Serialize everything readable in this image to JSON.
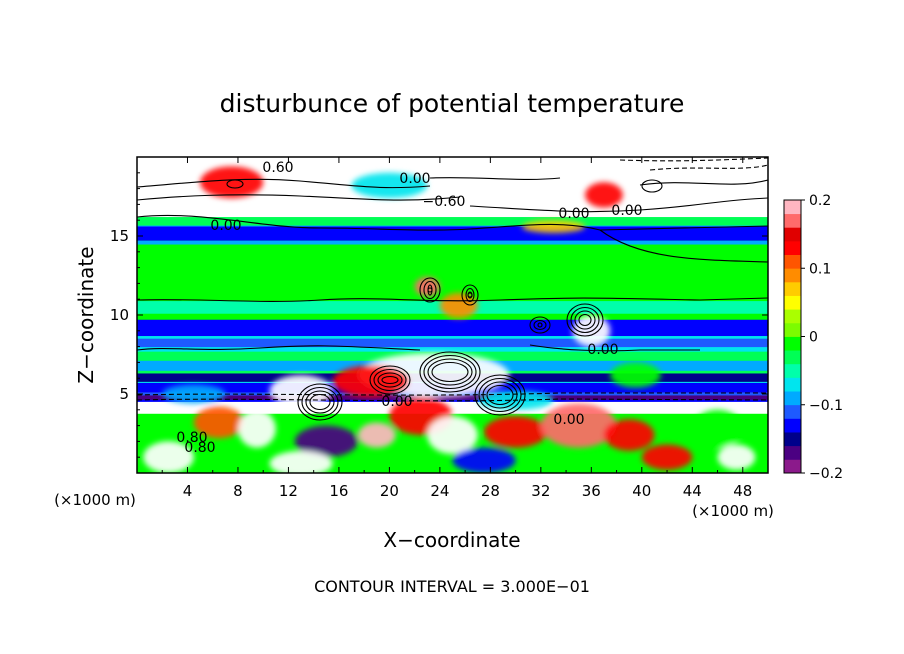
{
  "chart_data": {
    "type": "heatmap",
    "title": "disturbunce of potential temperature",
    "xlabel": "X−coordinate",
    "ylabel": "Z−coordinate",
    "x_unit_left": "(×1000 m)",
    "x_unit_right": "(×1000 m)",
    "x_ticks": [
      "4",
      "8",
      "12",
      "16",
      "20",
      "24",
      "28",
      "32",
      "36",
      "40",
      "44",
      "48"
    ],
    "y_ticks": [
      "5",
      "10",
      "15"
    ],
    "xlim": [
      0,
      50
    ],
    "ylim": [
      0,
      20
    ],
    "colorbar": {
      "range": [
        -0.2,
        0.2
      ],
      "tick_labels": [
        "0.2",
        "0.1",
        "0",
        "−0.1",
        "−0.2"
      ],
      "colors": [
        "#8b1a8b",
        "#4b0082",
        "#00008b",
        "#0000ff",
        "#1e5aff",
        "#00aaff",
        "#00e5ee",
        "#00ffaa",
        "#00ff55",
        "#00ff00",
        "#7cfc00",
        "#aaff00",
        "#ffff00",
        "#ffcc00",
        "#ff8c00",
        "#ff5500",
        "#ff0000",
        "#e00000",
        "#ff6a6a",
        "#ffb6c1"
      ]
    },
    "contour_labels": [
      "0.60",
      "0.00",
      "−0.60",
      "0.00",
      "0.00",
      "0.80",
      "0.00",
      "0.00",
      "0.00",
      "0.00",
      "0.80"
    ],
    "contour_interval_text": "CONTOUR INTERVAL = 3.000E−01",
    "grid": false
  }
}
